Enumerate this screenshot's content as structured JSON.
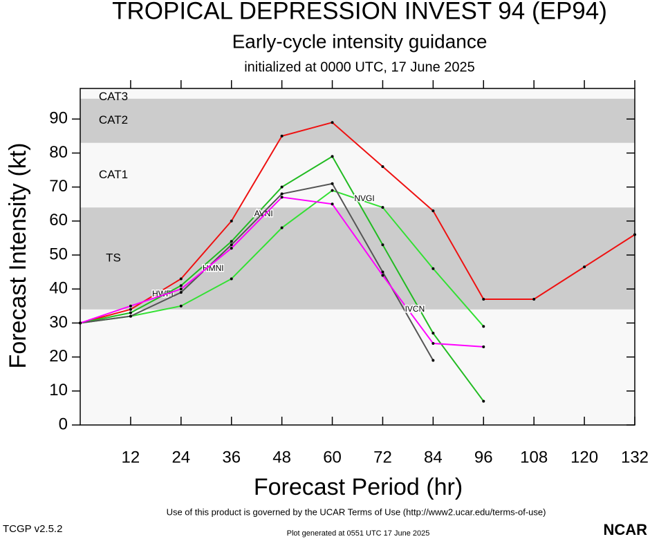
{
  "chart_data": {
    "type": "line",
    "title": "TROPICAL DEPRESSION INVEST 94 (EP94)",
    "subtitle": "Early-cycle intensity guidance",
    "initialized": "initialized at 0000 UTC, 17 June 2025",
    "x_label": "Forecast Period (hr)",
    "y_label": "Forecast Intensity (kt)",
    "x": [
      0,
      12,
      24,
      36,
      48,
      60,
      72,
      84,
      96,
      108,
      120,
      132
    ],
    "xlim": [
      0,
      132
    ],
    "xticks": [
      12,
      24,
      36,
      48,
      60,
      72,
      84,
      96,
      108,
      120,
      132
    ],
    "ylim": [
      0,
      99
    ],
    "yticks": [
      0,
      10,
      20,
      30,
      40,
      50,
      60,
      70,
      80,
      90
    ],
    "bands": [
      {
        "name": "TS",
        "range": [
          34,
          64
        ],
        "color": "#cccccc"
      },
      {
        "name": "CAT1",
        "range": [
          64,
          83
        ],
        "color": "#f8f8f8"
      },
      {
        "name": "CAT2",
        "range": [
          83,
          96
        ],
        "color": "#cccccc"
      },
      {
        "name": "CAT3",
        "range": [
          96,
          99
        ],
        "color": "#f8f8f8"
      }
    ],
    "series": [
      {
        "name": "HWFI",
        "color": "#ee1111",
        "values": [
          30,
          34,
          43,
          60,
          85,
          89,
          76,
          63,
          37,
          37,
          46.5,
          56
        ]
      },
      {
        "name": "AVNI",
        "color": "#22bb22",
        "values": [
          30,
          33,
          41,
          54,
          70,
          79,
          53,
          27,
          7,
          null,
          null,
          null
        ]
      },
      {
        "name": "NVGI",
        "color": "#33e033",
        "values": [
          30,
          32,
          35,
          43,
          58,
          69,
          64,
          46,
          29,
          null,
          null,
          null
        ]
      },
      {
        "name": "HMNI",
        "color": "#555555",
        "values": [
          30,
          32,
          39,
          53,
          68,
          71,
          45,
          19,
          null,
          null,
          null,
          null
        ]
      },
      {
        "name": "IVCN",
        "color": "#ff00ff",
        "values": [
          30,
          35,
          40,
          52,
          67,
          65,
          44,
          24,
          23,
          null,
          null,
          null
        ]
      }
    ],
    "terms": "Use of this product is governed by the UCAR Terms of Use (http://www2.ucar.edu/terms-of-use)",
    "version": "TCGP v2.5.2",
    "generated": "Plot generated at 0551 UTC   17 June 2025",
    "logo": "NCAR"
  }
}
